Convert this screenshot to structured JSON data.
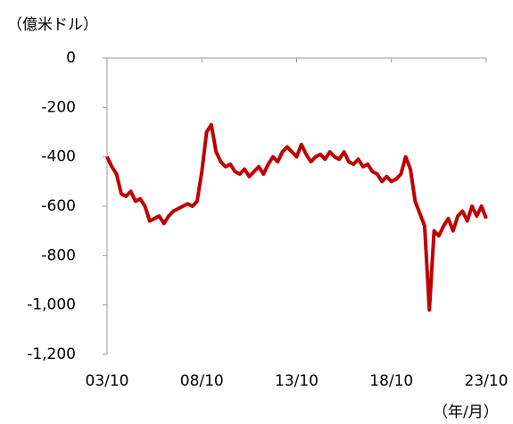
{
  "chart_data": {
    "type": "line",
    "y_axis_label": "（億米ドル）",
    "x_axis_label": "（年/月）",
    "categories": [
      "03/10",
      null,
      null,
      null,
      null,
      null,
      null,
      null,
      null,
      null,
      null,
      null,
      null,
      null,
      null,
      null,
      null,
      null,
      null,
      null,
      "08/10",
      null,
      null,
      null,
      null,
      null,
      null,
      null,
      null,
      null,
      null,
      null,
      null,
      null,
      null,
      null,
      null,
      null,
      null,
      null,
      "13/10",
      null,
      null,
      null,
      null,
      null,
      null,
      null,
      null,
      null,
      null,
      null,
      null,
      null,
      null,
      null,
      null,
      null,
      null,
      null,
      "18/10",
      null,
      null,
      null,
      null,
      null,
      null,
      null,
      null,
      null,
      null,
      null,
      null,
      null,
      null,
      null,
      null,
      null,
      null,
      null,
      "23/10"
    ],
    "series": [
      {
        "color": "#c00000",
        "values": [
          -400,
          -440,
          -470,
          -550,
          -560,
          -540,
          -580,
          -570,
          -600,
          -660,
          -650,
          -640,
          -670,
          -640,
          -620,
          -610,
          -600,
          -590,
          -600,
          -580,
          -460,
          -300,
          -270,
          -380,
          -420,
          -440,
          -430,
          -460,
          -470,
          -450,
          -480,
          -460,
          -440,
          -470,
          -430,
          -400,
          -420,
          -380,
          -360,
          -380,
          -400,
          -350,
          -390,
          -420,
          -400,
          -390,
          -410,
          -380,
          -400,
          -410,
          -380,
          -420,
          -430,
          -410,
          -440,
          -430,
          -460,
          -470,
          -500,
          -480,
          -500,
          -490,
          -470,
          -400,
          -450,
          -580,
          -630,
          -680,
          -1020,
          -700,
          -720,
          -680,
          -650,
          -700,
          -640,
          -620,
          -660,
          -600,
          -640,
          -600,
          -650
        ]
      }
    ],
    "ylim": [
      -1200,
      0
    ],
    "yticks": [
      0,
      -200,
      -400,
      -600,
      -800,
      {
        "value": -1000,
        "label": "-1,000"
      },
      {
        "value": -1200,
        "label": "-1,200"
      }
    ]
  }
}
